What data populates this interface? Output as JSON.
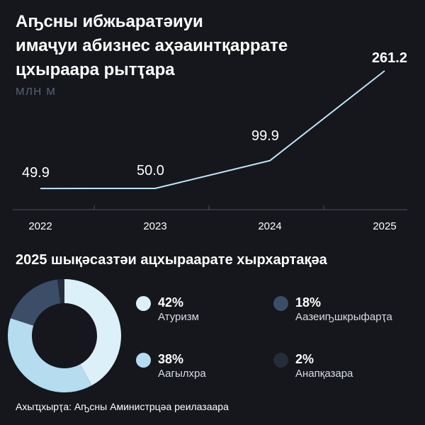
{
  "title_lines": [
    "Аҧсны ибжьаратәиуи",
    "имаҷуи абизнес аҳәаинтқаррате",
    "цхыраара рытҭара"
  ],
  "unit_label": "МЛН М",
  "section_title": "2025 шықәсазтәи ацхыраарате хырхартақәа",
  "source": "Ахыҵхырҭа: Аҧсны Аминистрцәа реилазаара",
  "colors": {
    "background": "#15171c",
    "line": "#bfe3f5",
    "axis": "#4b5262",
    "tourism": "#dcf0fa",
    "agriculture": "#b5dcef",
    "manufacturing": "#3c4d68",
    "other": "#252c3a"
  },
  "chart_data": [
    {
      "type": "line",
      "x": [
        "2022",
        "2023",
        "2024",
        "2025"
      ],
      "values": [
        49.9,
        50.0,
        99.9,
        261.2
      ],
      "data_labels": [
        "49.9",
        "50.0",
        "99.9",
        "261.2"
      ],
      "ylabel": "МЛН М",
      "ylim": [
        0,
        270
      ],
      "grid": false
    },
    {
      "type": "pie",
      "donut": true,
      "categories": [
        "Атуризм",
        "Аазеиҧшкрыфарҭа",
        "Аагылхра",
        "Анапқазара"
      ],
      "values": [
        42,
        18,
        38,
        2
      ],
      "labels": [
        "42%",
        "18%",
        "38%",
        "2%"
      ],
      "legend_placement": "right"
    }
  ]
}
